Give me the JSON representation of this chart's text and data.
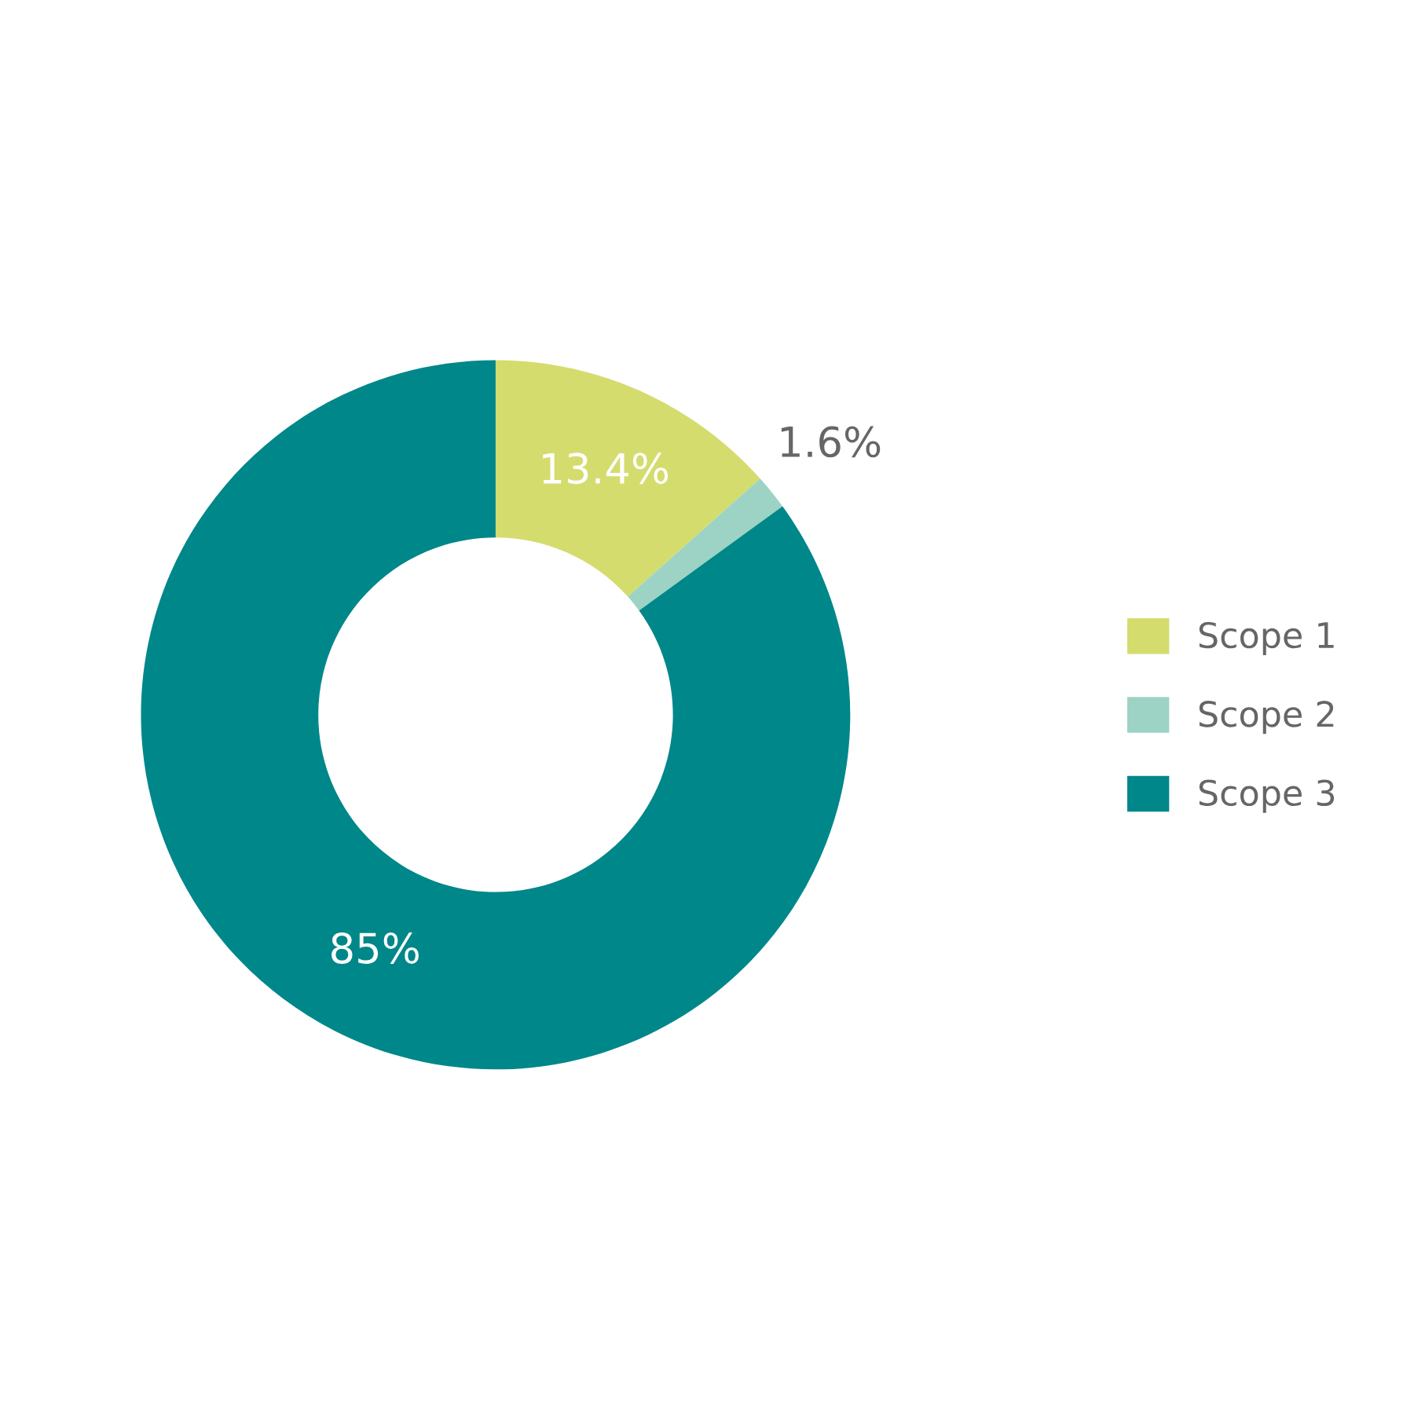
{
  "chart_data": {
    "type": "donut",
    "categories": [
      "Scope 1",
      "Scope 2",
      "Scope 3"
    ],
    "values": [
      13.4,
      1.6,
      85
    ],
    "colors": [
      "#d4dc6e",
      "#9dd3c4",
      "#00878a"
    ],
    "value_labels": [
      "13.4%",
      "1.6%",
      "85%"
    ],
    "legend": "right"
  }
}
